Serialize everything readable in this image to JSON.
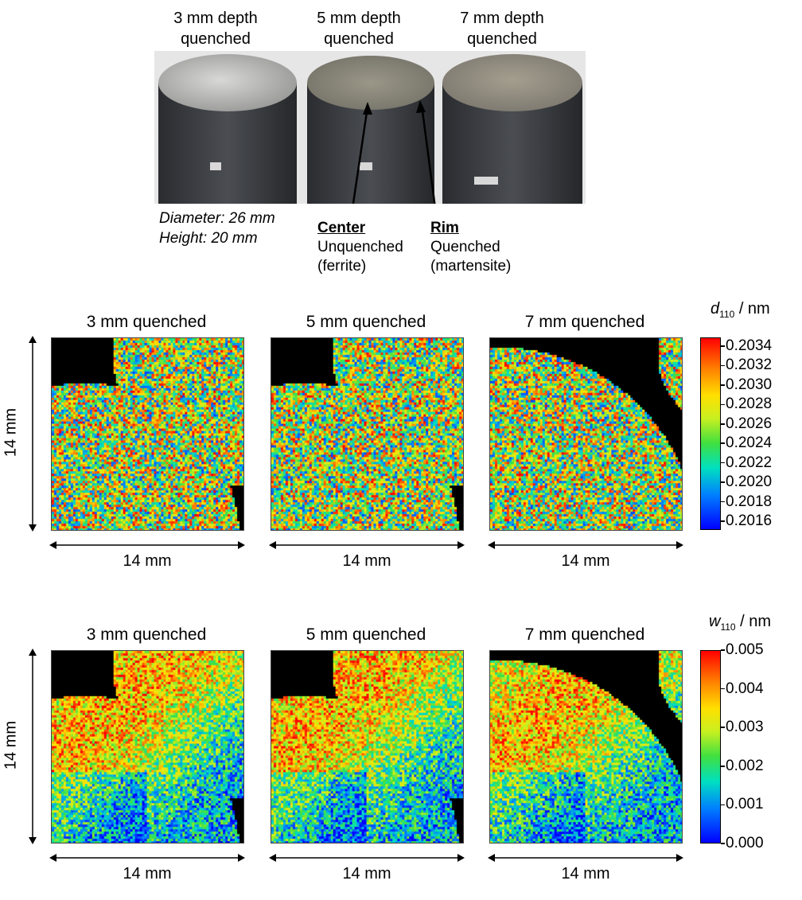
{
  "photo": {
    "labels": [
      "3 mm depth\nquenched",
      "5 mm depth\nquenched",
      "7 mm depth\nquenched"
    ],
    "dimensions": [
      "Diameter: 26 mm",
      "Height: 20 mm"
    ],
    "center": {
      "title": "Center",
      "line1": "Unquenched",
      "line2": "(ferrite)"
    },
    "rim": {
      "title": "Rim",
      "line1": "Quenched",
      "line2": "(martensite)"
    }
  },
  "maps": {
    "titles": [
      "3 mm quenched",
      "5 mm quenched",
      "7 mm quenched"
    ],
    "dimension_label": "14 mm"
  },
  "colorbars": [
    {
      "symbol": "d",
      "subscript": "110",
      "unit": " / nm",
      "ticks": [
        "0.2034",
        "0.2032",
        "0.2030",
        "0.2028",
        "0.2026",
        "0.2024",
        "0.2022",
        "0.2020",
        "0.2018",
        "0.2016"
      ],
      "range": [
        0.2016,
        0.2034
      ]
    },
    {
      "symbol": "w",
      "subscript": "110",
      "unit": " / nm",
      "ticks": [
        "0.005",
        "0.004",
        "0.003",
        "0.002",
        "0.001",
        "0.000"
      ],
      "range": [
        0.0,
        0.005
      ]
    }
  ]
}
